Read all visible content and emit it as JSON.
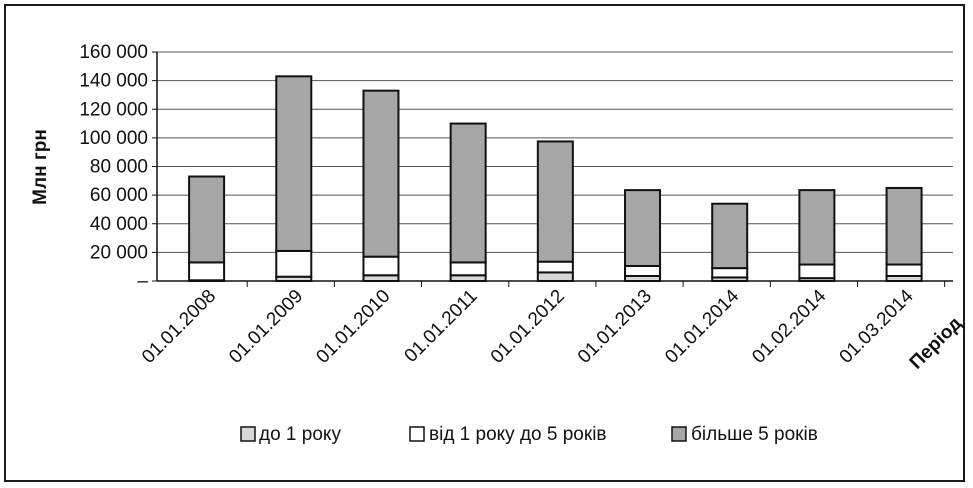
{
  "chart_data": {
    "type": "bar",
    "stacked": true,
    "categories": [
      "01.01.2008",
      "01.01.2009",
      "01.01.2010",
      "01.01.2011",
      "01.01.2012",
      "01.01.2013",
      "01.01.2014",
      "01.02.2014",
      "01.03.2014"
    ],
    "series": [
      {
        "name": "до 1 року",
        "color": "#d8d8d8",
        "values": [
          500,
          3000,
          4000,
          4000,
          6000,
          3500,
          2500,
          2000,
          3500
        ]
      },
      {
        "name": "від 1 року до 5 років",
        "color": "#ffffff",
        "values": [
          12500,
          18000,
          13000,
          9000,
          7500,
          7000,
          6500,
          9500,
          8000
        ]
      },
      {
        "name": "більше 5 років",
        "color": "#a6a6a6",
        "values": [
          60000,
          122000,
          116000,
          97000,
          84000,
          53000,
          45000,
          52000,
          53500
        ]
      }
    ],
    "yticks": [
      "160 000",
      "140 000",
      "120 000",
      "100 000",
      "80 000",
      "60 000",
      "40 000",
      "20 000",
      "–"
    ],
    "ylim": [
      0,
      160000
    ],
    "xlabel": "Період",
    "ylabel": "Млн грн",
    "grid": true,
    "legend_position": "bottom"
  }
}
